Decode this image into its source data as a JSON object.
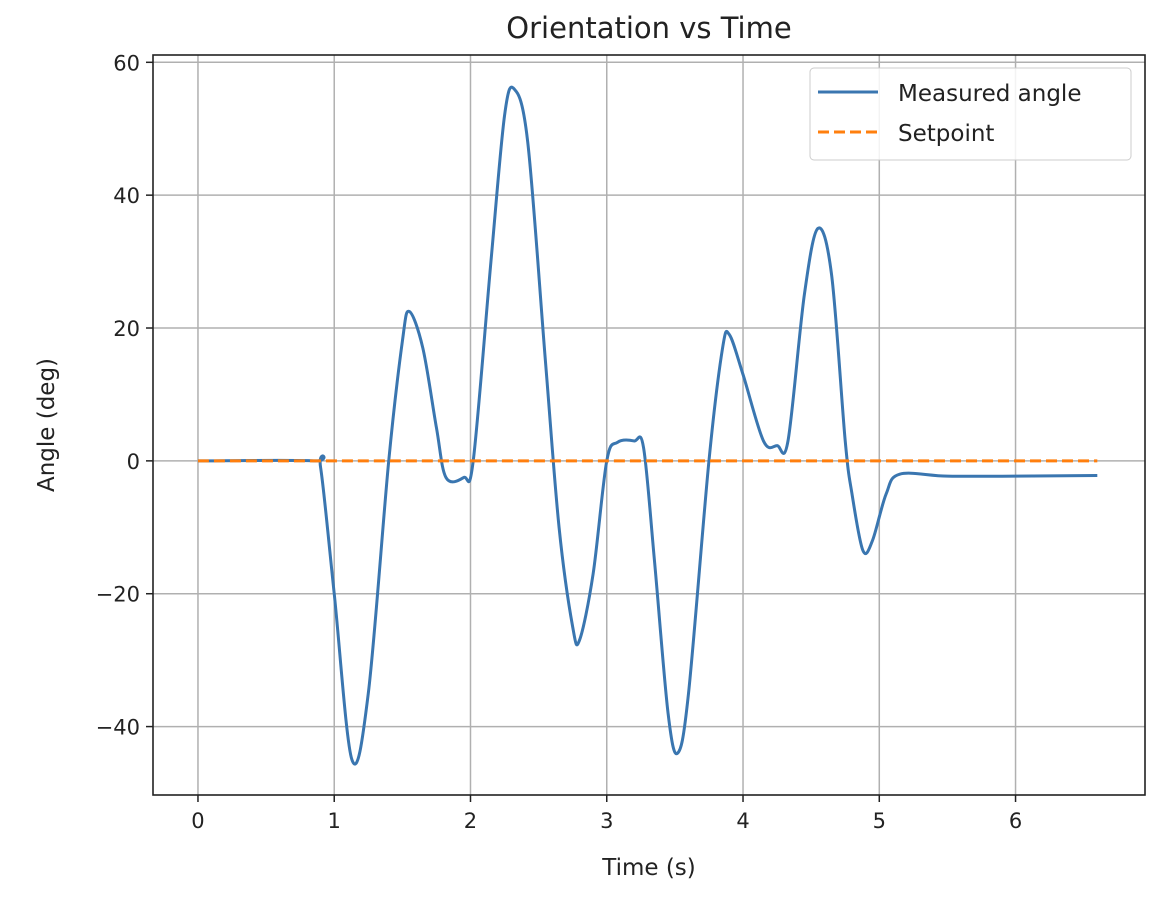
{
  "chart_data": {
    "type": "line",
    "title": "Orientation vs Time",
    "xlabel": "Time (s)",
    "ylabel": "Angle (deg)",
    "xlim": [
      -0.33,
      6.95
    ],
    "ylim": [
      -50.3,
      61.1
    ],
    "xticks": [
      0,
      1,
      2,
      3,
      4,
      5,
      6
    ],
    "xtick_labels": [
      "0",
      "1",
      "2",
      "3",
      "4",
      "5",
      "6"
    ],
    "yticks": [
      60,
      40,
      20,
      0,
      -20,
      -40
    ],
    "ytick_labels": [
      "60",
      "40",
      "20",
      "0",
      "−20",
      "−40"
    ],
    "grid": true,
    "legend_position": "top-right",
    "series": [
      {
        "name": "Measured angle",
        "color": "#3a76b0",
        "style": "solid",
        "x": [
          0,
          0.85,
          0.9,
          1.0,
          1.13,
          1.25,
          1.4,
          1.5,
          1.55,
          1.65,
          1.75,
          1.82,
          1.95,
          2.02,
          2.15,
          2.25,
          2.32,
          2.42,
          2.55,
          2.65,
          2.75,
          2.8,
          2.9,
          3.0,
          3.08,
          3.2,
          3.27,
          3.35,
          3.45,
          3.52,
          3.6,
          3.75,
          3.85,
          3.9,
          4.0,
          4.15,
          4.25,
          4.33,
          4.45,
          4.55,
          4.65,
          4.75,
          4.8,
          4.88,
          4.95,
          5.05,
          5.15,
          5.5,
          6.0,
          6.6
        ],
        "y": [
          0,
          0,
          -1,
          -20,
          -45,
          -35,
          0,
          18,
          22.5,
          17,
          5,
          -2.5,
          -2.5,
          0,
          30,
          52,
          56,
          48,
          15,
          -10,
          -25,
          -27,
          -17,
          0,
          2.8,
          3,
          2,
          -15,
          -38,
          -44,
          -35,
          0,
          17,
          19,
          13,
          3,
          2.3,
          3,
          25,
          35,
          28,
          3,
          -5,
          -13.5,
          -12,
          -5,
          -2,
          -2.3,
          -2.3,
          -2.2
        ]
      },
      {
        "name": "Setpoint",
        "color": "#ff7f0e",
        "style": "dashed",
        "x": [
          0,
          6.6
        ],
        "y": [
          0,
          0
        ]
      }
    ]
  }
}
